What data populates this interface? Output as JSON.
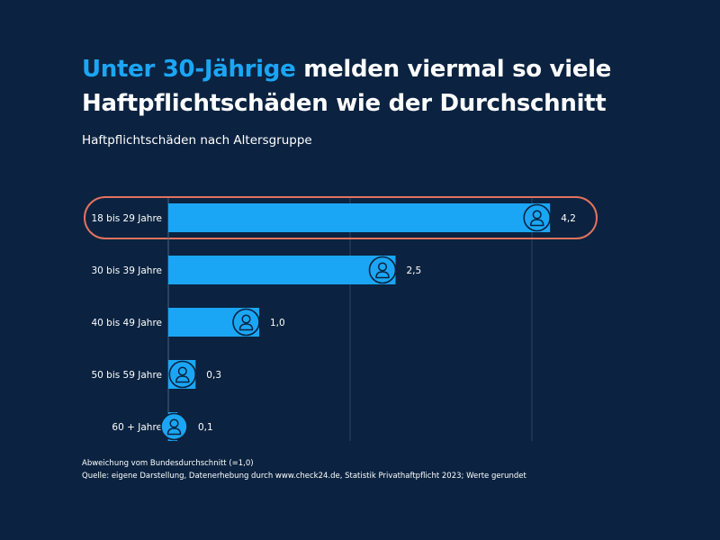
{
  "headline": {
    "highlight": "Unter 30-Jährige",
    "rest": " melden viermal so viele Haftpflichtschäden wie der Durchschnitt"
  },
  "subtitle": "Haftpflichtschäden nach Altersgruppe",
  "chart_data": {
    "type": "bar",
    "orientation": "horizontal",
    "categories": [
      "18 bis 29 Jahre",
      "30 bis 39 Jahre",
      "40 bis 49 Jahre",
      "50 bis 59 Jahre",
      "60 + Jahre"
    ],
    "values": [
      4.2,
      2.5,
      1.0,
      0.3,
      0.1
    ],
    "value_labels": [
      "4,2",
      "2,5",
      "1,0",
      "0,3",
      "0,1"
    ],
    "highlighted_category": "18 bis 29 Jahre",
    "xlim": [
      0,
      5
    ],
    "gridlines_at": [
      2,
      4
    ],
    "bar_color": "#1ba6f5",
    "highlight_color": "#e2735f",
    "icon": "person-icon"
  },
  "footnote": {
    "line1": "Abweichung vom Bundesdurchschnitt (=1,0)",
    "line2": "Quelle: eigene Darstellung, Datenerhebung durch www.check24.de, Statistik Privathaftpflicht 2023; Werte gerundet"
  },
  "colors": {
    "background": "#0b2340",
    "accent": "#1ba6f5",
    "text": "#ffffff"
  }
}
